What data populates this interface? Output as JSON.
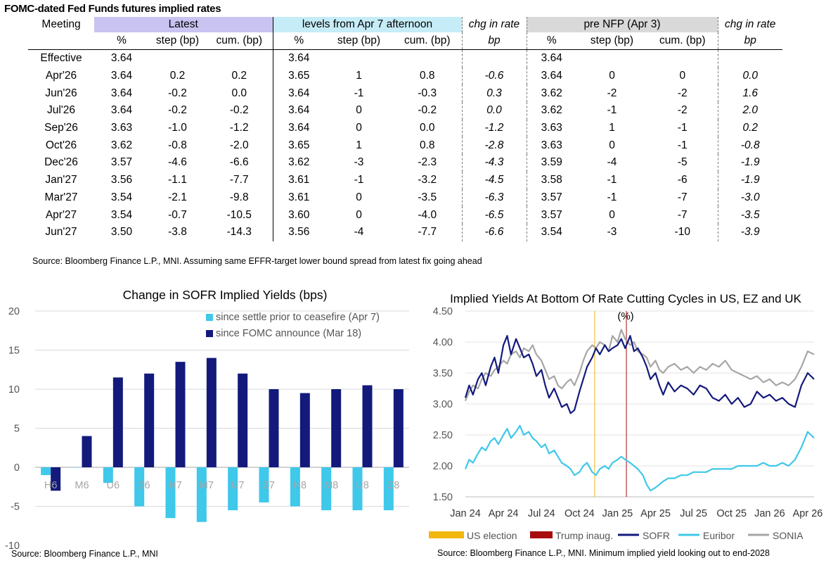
{
  "table": {
    "title": "FOMC-dated Fed Funds futures implied rates",
    "group_headers": [
      "Meeting",
      "Latest",
      "levels from Apr 7 afternoon",
      "chg in rate",
      "pre NFP (Apr 3)",
      "chg in rate"
    ],
    "sub_headers": [
      "",
      "%",
      "step (bp)",
      "cum. (bp)",
      "%",
      "step (bp)",
      "cum. (bp)",
      "bp",
      "%",
      "step (bp)",
      "cum. (bp)",
      "bp"
    ],
    "rows": [
      [
        "Effective",
        "3.64",
        "",
        "",
        "3.64",
        "",
        "",
        "",
        "3.64",
        "",
        "",
        ""
      ],
      [
        "Apr'26",
        "3.64",
        "0.2",
        "0.2",
        "3.65",
        "1",
        "0.8",
        "-0.6",
        "3.64",
        "0",
        "0",
        "0.0"
      ],
      [
        "Jun'26",
        "3.64",
        "-0.2",
        "0.0",
        "3.64",
        "-1",
        "-0.3",
        "0.3",
        "3.62",
        "-2",
        "-2",
        "1.6"
      ],
      [
        "Jul'26",
        "3.64",
        "-0.2",
        "-0.2",
        "3.64",
        "0",
        "-0.2",
        "0.0",
        "3.62",
        "-1",
        "-2",
        "2.0"
      ],
      [
        "Sep'26",
        "3.63",
        "-1.0",
        "-1.2",
        "3.64",
        "0",
        "0.0",
        "-1.2",
        "3.63",
        "1",
        "-1",
        "0.2"
      ],
      [
        "Oct'26",
        "3.62",
        "-0.8",
        "-2.0",
        "3.65",
        "1",
        "0.8",
        "-2.8",
        "3.63",
        "0",
        "-1",
        "-0.8"
      ],
      [
        "Dec'26",
        "3.57",
        "-4.6",
        "-6.6",
        "3.62",
        "-3",
        "-2.3",
        "-4.3",
        "3.59",
        "-4",
        "-5",
        "-1.9"
      ],
      [
        "Jan'27",
        "3.56",
        "-1.1",
        "-7.7",
        "3.61",
        "-1",
        "-3.2",
        "-4.5",
        "3.58",
        "-1",
        "-6",
        "-1.9"
      ],
      [
        "Mar'27",
        "3.54",
        "-2.1",
        "-9.8",
        "3.61",
        "0",
        "-3.5",
        "-6.3",
        "3.57",
        "-1",
        "-7",
        "-3.0"
      ],
      [
        "Apr'27",
        "3.54",
        "-0.7",
        "-10.5",
        "3.60",
        "0",
        "-4.0",
        "-6.5",
        "3.57",
        "0",
        "-7",
        "-3.5"
      ],
      [
        "Jun'27",
        "3.50",
        "-3.8",
        "-14.3",
        "3.56",
        "-4",
        "-7.7",
        "-6.6",
        "3.54",
        "-3",
        "-10",
        "-3.9"
      ]
    ],
    "source": "Source: Bloomberg Finance L.P., MNI. Assuming same  EFFR-target lower bound spread from latest fix going ahead",
    "colors": {
      "latest": "#c9c3f2",
      "apr7": "#c6ecf7",
      "nfp": "#d9d9d9"
    }
  },
  "chart_data": [
    {
      "type": "bar",
      "title": "Change in SOFR Implied Yields (bps)",
      "categories": [
        "H6",
        "M6",
        "U6",
        "Z6",
        "H7",
        "M7",
        "U7",
        "Z7",
        "H8",
        "M8",
        "U8",
        "Z8"
      ],
      "series": [
        {
          "name": "since settle prior to ceasefire (Apr 7)",
          "color": "#3fc8ea",
          "values": [
            -1.0,
            0.0,
            -2.0,
            -5.0,
            -6.5,
            -7.0,
            -5.5,
            -4.5,
            -5.0,
            -5.5,
            -5.5,
            -5.5
          ]
        },
        {
          "name": "since FOMC announce (Mar 18)",
          "color": "#131a7c",
          "values": [
            -3.0,
            4.0,
            11.5,
            12.0,
            13.5,
            14.0,
            12.0,
            10.0,
            9.5,
            10.0,
            10.5,
            10.0
          ]
        }
      ],
      "ylim": [
        -10,
        20
      ],
      "yticks": [
        "20",
        "15",
        "10",
        "5",
        "0",
        "-5",
        "-10"
      ],
      "legend": "top-right",
      "source": "Source: Bloomberg Finance L.P., MNI"
    },
    {
      "type": "line",
      "title": "Implied Yields At Bottom Of Rate Cutting Cycles in US, EZ and UK",
      "subtitle": "(%)",
      "xlabels": [
        "Jan 24",
        "Apr 24",
        "Jul 24",
        "Oct 24",
        "Jan 25",
        "Apr 25",
        "Jul 25",
        "Oct 25",
        "Jan 26",
        "Apr 26"
      ],
      "ylim": [
        1.5,
        4.5
      ],
      "yticks": [
        "4.50",
        "4.00",
        "3.50",
        "3.00",
        "2.50",
        "2.00",
        "1.50"
      ],
      "legend": [
        "US election",
        "Trump inaug.",
        "SOFR",
        "Euribor",
        "SONIA"
      ],
      "events": [
        {
          "name": "US election",
          "x": 10.2,
          "color": "#f2b70f"
        },
        {
          "name": "Trump inaug.",
          "x": 12.7,
          "color": "#a80d0d"
        }
      ],
      "series": [
        {
          "name": "SOFR",
          "color": "#131a7c",
          "x": [
            0,
            0.3,
            0.6,
            1,
            1.3,
            1.6,
            2,
            2.3,
            2.6,
            3,
            3.3,
            3.6,
            4,
            4.3,
            4.6,
            5,
            5.3,
            5.6,
            6,
            6.3,
            6.6,
            7,
            7.3,
            7.6,
            8,
            8.3,
            8.6,
            9,
            9.3,
            9.6,
            10,
            10.3,
            10.6,
            11,
            11.3,
            11.6,
            12,
            12.3,
            12.6,
            13,
            13.3,
            13.6,
            14,
            14.3,
            14.6,
            15,
            15.3,
            15.6,
            16,
            16.5,
            17,
            17.5,
            18,
            18.5,
            19,
            19.5,
            20,
            20.5,
            21,
            21.5,
            22,
            22.5,
            23,
            23.5,
            24,
            24.5,
            25,
            25.5,
            26,
            26.5,
            27,
            27.5
          ],
          "y": [
            3.1,
            3.3,
            3.15,
            3.4,
            3.5,
            3.3,
            3.6,
            3.75,
            3.5,
            3.95,
            4.1,
            3.8,
            4.05,
            3.9,
            3.75,
            3.8,
            3.65,
            3.45,
            3.55,
            3.3,
            3.1,
            3.25,
            3.1,
            2.95,
            3.0,
            2.85,
            2.9,
            3.2,
            3.4,
            3.6,
            3.75,
            3.9,
            3.8,
            3.95,
            3.85,
            3.9,
            3.95,
            4.05,
            3.9,
            4.1,
            3.85,
            3.9,
            3.75,
            3.6,
            3.4,
            3.5,
            3.3,
            3.15,
            3.35,
            3.2,
            3.3,
            3.25,
            3.15,
            3.3,
            3.25,
            3.1,
            3.05,
            3.15,
            3.0,
            3.1,
            2.95,
            3.0,
            3.2,
            3.1,
            3.15,
            3.05,
            3.1,
            3.0,
            2.95,
            3.3,
            3.5,
            3.4
          ]
        },
        {
          "name": "Euribor",
          "color": "#3fc8ea",
          "x": [
            0,
            0.3,
            0.6,
            1,
            1.3,
            1.6,
            2,
            2.3,
            2.6,
            3,
            3.3,
            3.6,
            4,
            4.3,
            4.6,
            5,
            5.3,
            5.6,
            6,
            6.3,
            6.6,
            7,
            7.3,
            7.6,
            8,
            8.3,
            8.6,
            9,
            9.3,
            9.6,
            10,
            10.3,
            10.6,
            11,
            11.3,
            11.6,
            12,
            12.3,
            12.6,
            13,
            13.3,
            13.6,
            14,
            14.3,
            14.6,
            15,
            15.3,
            15.6,
            16,
            16.5,
            17,
            17.5,
            18,
            18.5,
            19,
            19.5,
            20,
            20.5,
            21,
            21.5,
            22,
            22.5,
            23,
            23.5,
            24,
            24.5,
            25,
            25.5,
            26,
            26.5,
            27,
            27.5
          ],
          "y": [
            1.95,
            2.1,
            2.05,
            2.2,
            2.3,
            2.25,
            2.4,
            2.45,
            2.35,
            2.5,
            2.6,
            2.45,
            2.55,
            2.65,
            2.5,
            2.55,
            2.45,
            2.4,
            2.3,
            2.35,
            2.2,
            2.25,
            2.15,
            2.05,
            2.0,
            1.95,
            1.85,
            1.9,
            2.0,
            2.05,
            1.9,
            1.85,
            1.95,
            2.0,
            1.95,
            2.05,
            2.1,
            2.15,
            2.1,
            2.05,
            2.0,
            1.95,
            1.85,
            1.7,
            1.6,
            1.65,
            1.7,
            1.75,
            1.8,
            1.8,
            1.85,
            1.85,
            1.9,
            1.9,
            1.9,
            1.95,
            1.95,
            1.95,
            1.95,
            2.0,
            2.0,
            2.0,
            2.0,
            2.05,
            2.0,
            2.0,
            2.05,
            2.0,
            2.1,
            2.3,
            2.55,
            2.45
          ]
        },
        {
          "name": "SONIA",
          "color": "#a6a6a6",
          "x": [
            0,
            0.3,
            0.6,
            1,
            1.3,
            1.6,
            2,
            2.3,
            2.6,
            3,
            3.3,
            3.6,
            4,
            4.3,
            4.6,
            5,
            5.3,
            5.6,
            6,
            6.3,
            6.6,
            7,
            7.3,
            7.6,
            8,
            8.3,
            8.6,
            9,
            9.3,
            9.6,
            10,
            10.3,
            10.6,
            11,
            11.3,
            11.6,
            12,
            12.3,
            12.6,
            13,
            13.3,
            13.6,
            14,
            14.3,
            14.6,
            15,
            15.3,
            15.6,
            16,
            16.5,
            17,
            17.5,
            18,
            18.5,
            19,
            19.5,
            20,
            20.5,
            21,
            21.5,
            22,
            22.5,
            23,
            23.5,
            24,
            24.5,
            25,
            25.5,
            26,
            26.5,
            27,
            27.5
          ],
          "y": [
            3.05,
            3.2,
            3.3,
            3.25,
            3.4,
            3.5,
            3.45,
            3.55,
            3.6,
            3.7,
            3.65,
            3.8,
            3.85,
            3.75,
            3.9,
            3.85,
            3.95,
            3.8,
            3.7,
            3.55,
            3.4,
            3.45,
            3.3,
            3.25,
            3.35,
            3.4,
            3.3,
            3.5,
            3.7,
            3.85,
            3.95,
            3.9,
            4.0,
            3.95,
            3.85,
            4.1,
            4.0,
            4.2,
            4.05,
            3.95,
            4.0,
            3.85,
            3.8,
            3.75,
            3.6,
            3.7,
            3.55,
            3.5,
            3.6,
            3.65,
            3.55,
            3.6,
            3.5,
            3.6,
            3.55,
            3.65,
            3.6,
            3.7,
            3.55,
            3.5,
            3.45,
            3.4,
            3.45,
            3.35,
            3.4,
            3.3,
            3.35,
            3.3,
            3.4,
            3.6,
            3.85,
            3.8
          ]
        }
      ],
      "source": "Source: Bloomberg Finance L.P., MNI. Minimum implied yield looking out to end-2028"
    }
  ]
}
